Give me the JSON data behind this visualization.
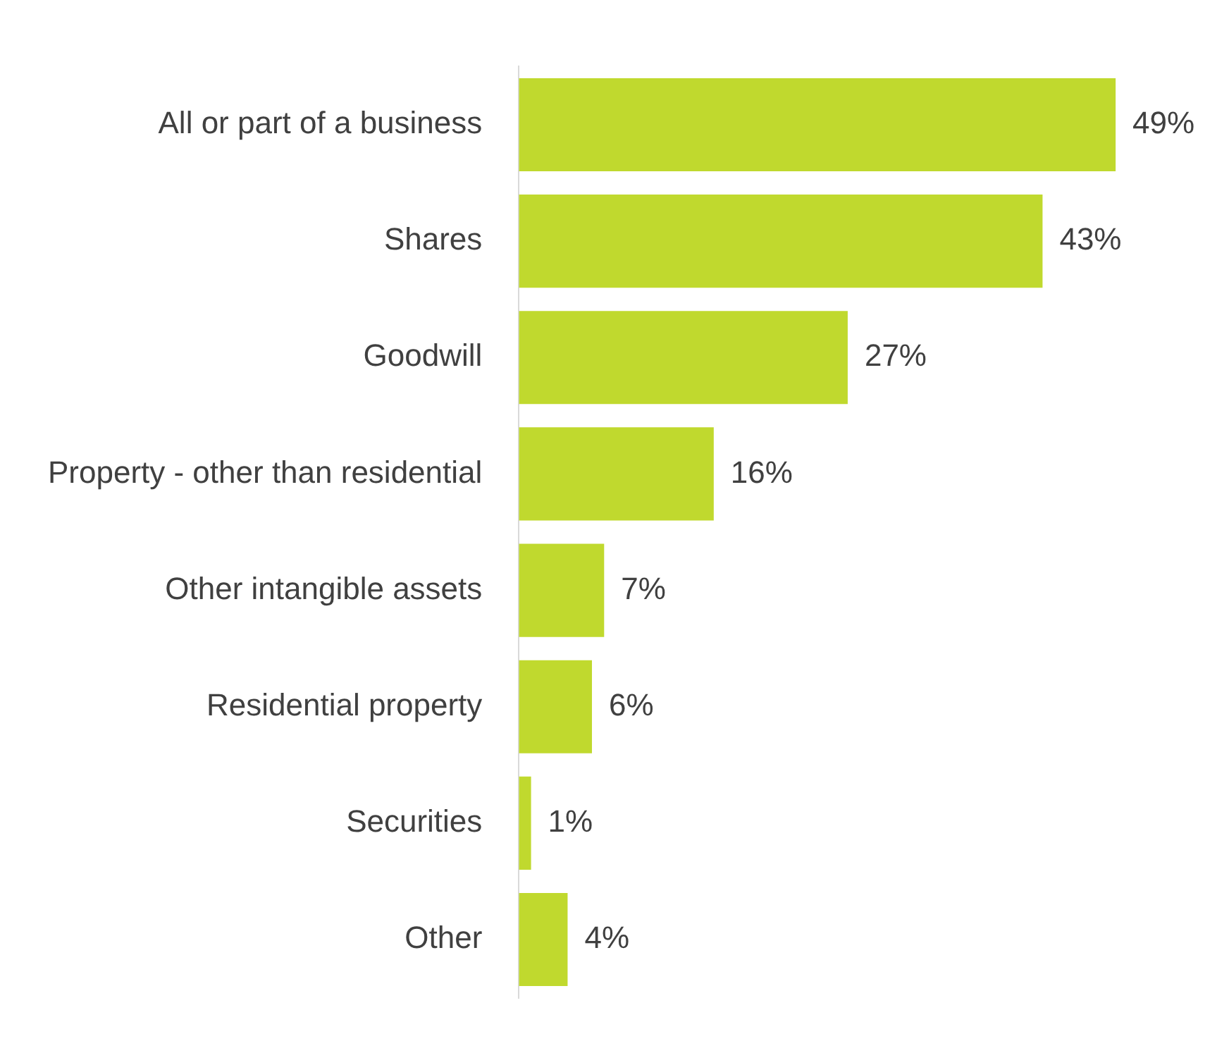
{
  "chart_data": {
    "type": "bar",
    "orientation": "horizontal",
    "categories": [
      "All or part of a business",
      "Shares",
      "Goodwill",
      "Property - other than residential",
      "Other intangible assets",
      "Residential property",
      "Securities",
      "Other"
    ],
    "values": [
      49,
      43,
      27,
      16,
      7,
      6,
      1,
      4
    ],
    "value_labels": [
      "49%",
      "43%",
      "27%",
      "16%",
      "7%",
      "6%",
      "1%",
      "4%"
    ],
    "color": "#c0d92e",
    "legend": false
  }
}
